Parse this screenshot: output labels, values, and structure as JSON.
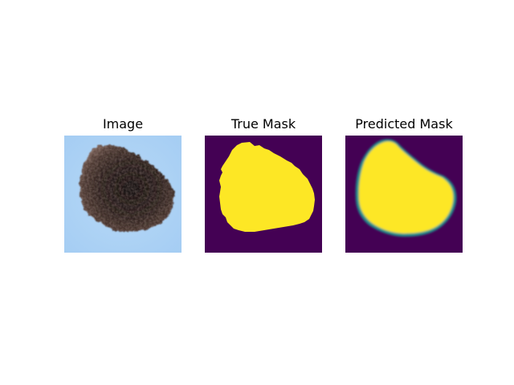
{
  "panels": [
    {
      "title": "Image"
    },
    {
      "title": "True Mask"
    },
    {
      "title": "Predicted Mask"
    }
  ],
  "colors": {
    "skin_background": "#a9d2f6",
    "lesion_dark": "#1c1514",
    "lesion_mid": "#3a2a25",
    "lesion_light": "#6a5148",
    "mask_background": "#440154",
    "mask_foreground": "#fde725",
    "mask_edge_1": "#21918c",
    "mask_edge_2": "#5ec962"
  }
}
